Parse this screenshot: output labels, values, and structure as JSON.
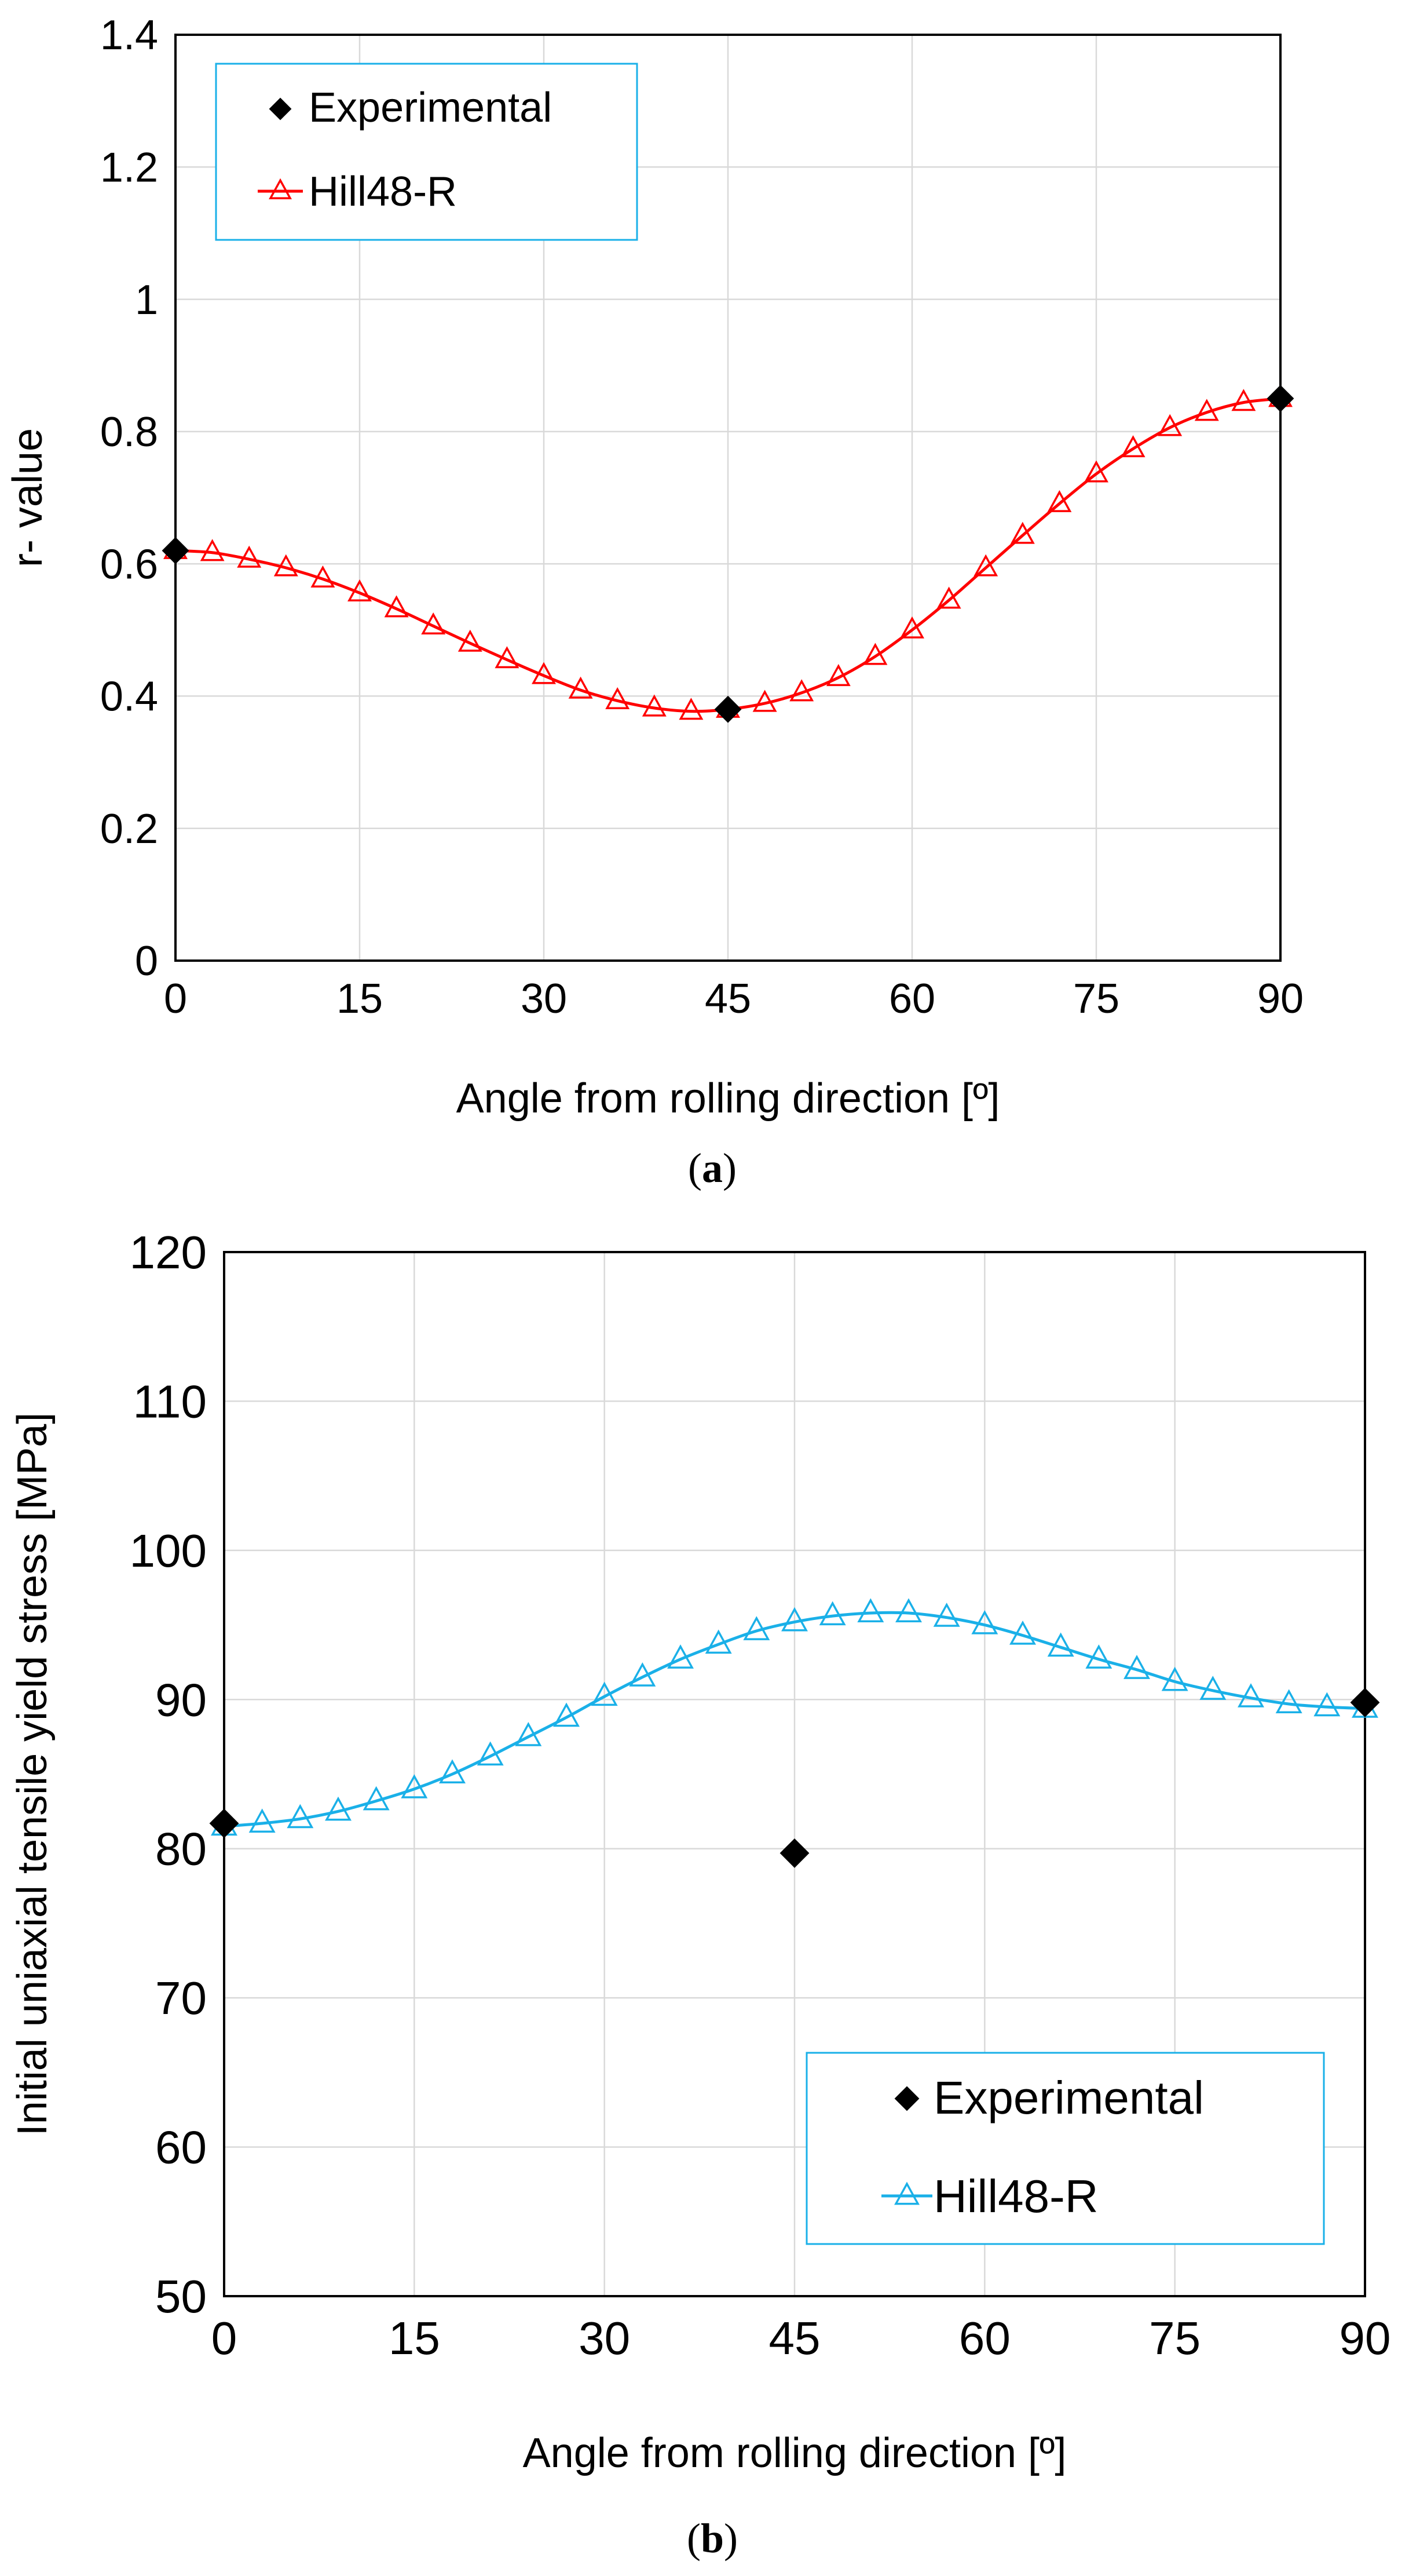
{
  "chart_data": [
    {
      "type": "line",
      "panel": "a",
      "caption_open": "(",
      "caption_letter": "a",
      "caption_close": ")",
      "xlabel": "Angle from rolling direction [º]",
      "ylabel": "r- value",
      "xlim": [
        0,
        90
      ],
      "ylim": [
        0,
        1.4
      ],
      "xticks": [
        "0",
        "15",
        "30",
        "45",
        "60",
        "75",
        "90"
      ],
      "yticks": [
        "0",
        "0.2",
        "0.4",
        "0.6",
        "0.8",
        "1",
        "1.2",
        "1.4"
      ],
      "grid": true,
      "legend_position": "top-left",
      "series": [
        {
          "name": "Experimental",
          "marker": "diamond",
          "color": "#000000",
          "x": [
            0,
            45,
            90
          ],
          "values": [
            0.62,
            0.38,
            0.85
          ]
        },
        {
          "name": "Hill48-R",
          "marker": "triangle-open",
          "color": "#ff0000",
          "x": [
            0,
            3,
            6,
            9,
            12,
            15,
            18,
            21,
            24,
            27,
            30,
            33,
            36,
            39,
            42,
            45,
            48,
            51,
            54,
            57,
            60,
            63,
            66,
            69,
            72,
            75,
            78,
            81,
            84,
            87,
            90
          ],
          "values": [
            0.62,
            0.617,
            0.607,
            0.594,
            0.577,
            0.556,
            0.532,
            0.506,
            0.48,
            0.455,
            0.431,
            0.409,
            0.393,
            0.382,
            0.377,
            0.38,
            0.389,
            0.405,
            0.428,
            0.46,
            0.5,
            0.545,
            0.594,
            0.643,
            0.691,
            0.736,
            0.774,
            0.806,
            0.829,
            0.844,
            0.85
          ]
        }
      ]
    },
    {
      "type": "line",
      "panel": "b",
      "caption_open": "(",
      "caption_letter": "b",
      "caption_close": ")",
      "xlabel": "Angle from rolling direction [º]",
      "ylabel": "Initial uniaxial tensile yield stress [MPa]",
      "xlim": [
        0,
        90
      ],
      "ylim": [
        50,
        120
      ],
      "xticks": [
        "0",
        "15",
        "30",
        "45",
        "60",
        "75",
        "90"
      ],
      "yticks": [
        "50",
        "60",
        "70",
        "80",
        "90",
        "100",
        "110",
        "120"
      ],
      "grid": true,
      "legend_position": "bottom-right",
      "series": [
        {
          "name": "Experimental",
          "marker": "diamond",
          "color": "#000000",
          "x": [
            0,
            45,
            90
          ],
          "values": [
            81.7,
            79.7,
            89.8
          ]
        },
        {
          "name": "Hill48-R",
          "marker": "triangle-open",
          "color": "#1ab0e8",
          "x": [
            0,
            3,
            6,
            9,
            12,
            15,
            18,
            21,
            24,
            27,
            30,
            33,
            36,
            39,
            42,
            45,
            48,
            51,
            54,
            57,
            60,
            63,
            66,
            69,
            72,
            75,
            78,
            81,
            84,
            87,
            90
          ],
          "values": [
            81.5,
            81.7,
            82.0,
            82.5,
            83.2,
            84.0,
            85.0,
            86.2,
            87.5,
            88.8,
            90.2,
            91.5,
            92.7,
            93.7,
            94.6,
            95.2,
            95.6,
            95.8,
            95.8,
            95.5,
            95.0,
            94.3,
            93.5,
            92.7,
            92.0,
            91.2,
            90.6,
            90.1,
            89.7,
            89.5,
            89.4
          ]
        }
      ]
    }
  ]
}
